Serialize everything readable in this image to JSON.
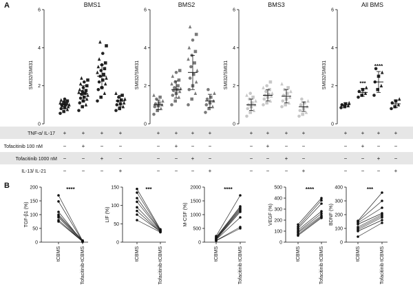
{
  "panel_labels": [
    "A",
    "B"
  ],
  "chart_data": [
    {
      "id": "BMS1",
      "type": "scatter",
      "title": "BMS1",
      "ylabel": "SMI32/SMI31",
      "ylim": [
        0,
        6
      ],
      "yticks": [
        "0",
        "2",
        "4",
        "6"
      ],
      "color": "#222222",
      "marker": "mixed",
      "groups": [
        {
          "mean": 1.0,
          "sd": 0.2,
          "values": [
            0.55,
            0.65,
            0.75,
            0.8,
            0.85,
            0.9,
            0.95,
            1.0,
            1.0,
            1.05,
            1.1,
            1.1,
            1.15,
            1.2,
            1.25,
            1.3
          ]
        },
        {
          "mean": 1.6,
          "sd": 0.4,
          "values": [
            0.7,
            0.9,
            1.0,
            1.1,
            1.2,
            1.3,
            1.35,
            1.4,
            1.5,
            1.55,
            1.6,
            1.65,
            1.7,
            1.75,
            1.8,
            1.9,
            2.0,
            2.1,
            2.2,
            2.3,
            2.4
          ]
        },
        {
          "mean": 2.5,
          "sd": 0.6,
          "values": [
            1.2,
            1.4,
            1.6,
            1.8,
            1.9,
            2.1,
            2.2,
            2.3,
            2.4,
            2.5,
            2.6,
            2.7,
            2.8,
            2.9,
            3.0,
            3.1,
            3.2,
            3.4,
            3.7,
            4.1,
            4.3
          ]
        },
        {
          "mean": 1.2,
          "sd": 0.3,
          "values": [
            0.7,
            0.8,
            0.9,
            1.0,
            1.05,
            1.1,
            1.2,
            1.25,
            1.3,
            1.4,
            1.5,
            1.6
          ]
        }
      ],
      "stars": [
        "",
        "",
        "",
        ""
      ]
    },
    {
      "id": "BMS2",
      "type": "scatter",
      "title": "BMS2",
      "ylabel": "SMI32/SMI31",
      "ylim": [
        0,
        6
      ],
      "yticks": [
        "0",
        "2",
        "4",
        "6"
      ],
      "color": "#7a7a7a",
      "marker": "mixed",
      "groups": [
        {
          "mean": 1.0,
          "sd": 0.25,
          "values": [
            0.5,
            0.7,
            0.8,
            0.9,
            0.95,
            1.0,
            1.05,
            1.1,
            1.2,
            1.3,
            1.4,
            1.5
          ]
        },
        {
          "mean": 1.8,
          "sd": 0.45,
          "values": [
            1.0,
            1.2,
            1.4,
            1.5,
            1.6,
            1.7,
            1.75,
            1.8,
            1.85,
            1.9,
            2.0,
            2.1,
            2.2,
            2.3,
            2.5,
            2.7,
            2.8
          ]
        },
        {
          "mean": 2.7,
          "sd": 0.9,
          "values": [
            1.0,
            1.3,
            1.6,
            1.8,
            2.0,
            2.2,
            2.4,
            2.6,
            2.8,
            3.0,
            3.2,
            3.4,
            3.6,
            3.8,
            4.0,
            4.4,
            4.7,
            5.1
          ]
        },
        {
          "mean": 1.2,
          "sd": 0.35,
          "values": [
            0.6,
            0.8,
            0.9,
            1.0,
            1.1,
            1.2,
            1.3,
            1.4,
            1.6,
            1.8
          ]
        }
      ],
      "stars": [
        "",
        "",
        "",
        ""
      ]
    },
    {
      "id": "BMS3",
      "type": "scatter",
      "title": "BMS3",
      "ylabel": "SMI32/SMI31",
      "ylim": [
        0,
        6
      ],
      "yticks": [
        "0",
        "2",
        "4",
        "6"
      ],
      "color": "#c8c8c8",
      "marker": "mixed",
      "groups": [
        {
          "mean": 1.0,
          "sd": 0.3,
          "values": [
            0.4,
            0.6,
            0.7,
            0.8,
            0.9,
            1.0,
            1.0,
            1.1,
            1.2,
            1.3,
            1.4,
            1.5,
            1.6
          ]
        },
        {
          "mean": 1.5,
          "sd": 0.3,
          "values": [
            1.0,
            1.1,
            1.2,
            1.3,
            1.4,
            1.45,
            1.5,
            1.55,
            1.6,
            1.7,
            1.8,
            1.9,
            2.0,
            2.2
          ]
        },
        {
          "mean": 1.45,
          "sd": 0.35,
          "values": [
            0.9,
            1.0,
            1.1,
            1.2,
            1.3,
            1.4,
            1.5,
            1.6,
            1.7,
            1.8,
            1.9,
            2.1
          ]
        },
        {
          "mean": 0.9,
          "sd": 0.25,
          "values": [
            0.4,
            0.5,
            0.6,
            0.7,
            0.8,
            0.9,
            1.0,
            1.1,
            1.2,
            1.3
          ]
        }
      ],
      "stars": [
        "",
        "",
        "",
        ""
      ]
    },
    {
      "id": "AllBMS",
      "type": "scatter",
      "title": "All BMS",
      "ylabel": "SMI32/SMI31",
      "ylim": [
        0,
        6
      ],
      "yticks": [
        "0",
        "2",
        "4",
        "6"
      ],
      "color": "#222222",
      "marker": "mixed",
      "groups": [
        {
          "mean": 1.0,
          "sd": 0.1,
          "values": [
            0.85,
            0.9,
            0.95,
            1.0,
            1.05,
            1.1
          ]
        },
        {
          "mean": 1.65,
          "sd": 0.2,
          "values": [
            1.4,
            1.5,
            1.6,
            1.7,
            1.8,
            1.9
          ]
        },
        {
          "mean": 2.2,
          "sd": 0.55,
          "values": [
            1.5,
            1.8,
            2.0,
            2.2,
            2.5,
            2.7,
            2.9
          ]
        },
        {
          "mean": 1.05,
          "sd": 0.2,
          "values": [
            0.8,
            0.9,
            1.0,
            1.1,
            1.2,
            1.3
          ]
        }
      ],
      "stars": [
        "",
        "***",
        "****",
        ""
      ]
    },
    {
      "id": "TGFb1",
      "type": "paired-line",
      "ylabel": "TGF-β1 (%)",
      "ylim": [
        0,
        200
      ],
      "yticks": [
        "0",
        "50",
        "100",
        "150",
        "200"
      ],
      "categories": [
        "tCBMS",
        "Tofacitinib-tCBMS"
      ],
      "stars": "****",
      "pairs": [
        [
          170,
          5
        ],
        [
          148,
          3
        ],
        [
          110,
          2
        ],
        [
          100,
          6
        ],
        [
          95,
          4
        ],
        [
          90,
          1
        ],
        [
          80,
          3
        ],
        [
          75,
          2
        ]
      ]
    },
    {
      "id": "LIF",
      "type": "paired-line",
      "ylabel": "LIF (%)",
      "ylim": [
        0,
        150
      ],
      "yticks": [
        "0",
        "50",
        "100",
        "150"
      ],
      "categories": [
        "tCBMS",
        "Tofacitinib-tCBMS"
      ],
      "stars": "***",
      "pairs": [
        [
          145,
          35
        ],
        [
          135,
          33
        ],
        [
          120,
          32
        ],
        [
          110,
          31
        ],
        [
          95,
          30
        ],
        [
          85,
          28
        ],
        [
          75,
          29
        ],
        [
          60,
          27
        ]
      ]
    },
    {
      "id": "MCSF",
      "type": "paired-line",
      "ylabel": "M-CSF (%)",
      "ylim": [
        0,
        2000
      ],
      "yticks": [
        "0",
        "500",
        "1000",
        "1500",
        "2000"
      ],
      "categories": [
        "tCBMS",
        "Tofacitinib tCBMS"
      ],
      "stars": "****",
      "pairs": [
        [
          220,
          1700
        ],
        [
          180,
          1300
        ],
        [
          160,
          1250
        ],
        [
          140,
          1200
        ],
        [
          120,
          1150
        ],
        [
          100,
          1100
        ],
        [
          90,
          900
        ],
        [
          60,
          550
        ],
        [
          50,
          500
        ]
      ]
    },
    {
      "id": "VEGF",
      "type": "paired-line",
      "ylabel": "VEGF (%)",
      "ylim": [
        0,
        500
      ],
      "yticks": [
        "0",
        "100",
        "200",
        "300",
        "400",
        "500"
      ],
      "categories": [
        "tCBMS",
        "Tofacitinib tCBMS"
      ],
      "stars": "****",
      "pairs": [
        [
          160,
          400
        ],
        [
          140,
          380
        ],
        [
          125,
          350
        ],
        [
          110,
          280
        ],
        [
          95,
          260
        ],
        [
          85,
          240
        ],
        [
          70,
          230
        ],
        [
          60,
          220
        ]
      ]
    },
    {
      "id": "BDNF",
      "type": "paired-line",
      "ylabel": "BDNF (%)",
      "ylim": [
        0,
        400
      ],
      "yticks": [
        "0",
        "100",
        "200",
        "300",
        "400"
      ],
      "categories": [
        "tCBMS",
        "Tofacitinib tCBMS"
      ],
      "stars": "***",
      "pairs": [
        [
          155,
          360
        ],
        [
          150,
          300
        ],
        [
          140,
          250
        ],
        [
          130,
          210
        ],
        [
          110,
          200
        ],
        [
          100,
          190
        ],
        [
          90,
          180
        ],
        [
          80,
          160
        ],
        [
          40,
          140
        ]
      ]
    }
  ],
  "treatment_table": {
    "rows": [
      {
        "label": "TNF-α/ IL-17",
        "shaded": true,
        "cells": [
          "+",
          "+",
          "+",
          "+"
        ]
      },
      {
        "label": "Tofacitinib 100 nM",
        "shaded": false,
        "cells": [
          "−",
          "+",
          "−",
          "−"
        ]
      },
      {
        "label": "Tofacitinib 1000 nM",
        "shaded": true,
        "cells": [
          "−",
          "−",
          "+",
          "−"
        ]
      },
      {
        "label": "IL-13/ IL-21",
        "shaded": false,
        "cells": [
          "−",
          "−",
          "−",
          "+"
        ]
      }
    ]
  }
}
